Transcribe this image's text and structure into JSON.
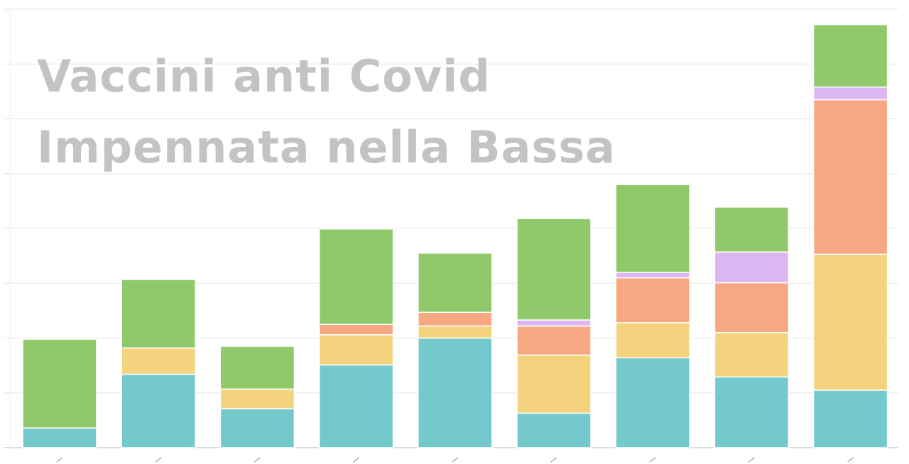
{
  "chart_data": {
    "type": "bar",
    "stacked": true,
    "title": "Vaccini anti Covid",
    "subtitle": "Impennata nella Bassa",
    "xlabel": "",
    "ylabel": "",
    "categories": [
      "",
      "",
      "",
      "",
      "",
      "",
      "",
      "",
      ""
    ],
    "ylim": [
      0,
      8
    ],
    "grid": true,
    "series": [
      {
        "color": "#74c9cd",
        "values": [
          0.36,
          1.34,
          0.71,
          1.51,
          2.0,
          0.63,
          1.64,
          1.29,
          1.05
        ]
      },
      {
        "color": "#f5d37e",
        "values": [
          0.0,
          0.48,
          0.36,
          0.55,
          0.22,
          1.06,
          0.64,
          0.81,
          2.48
        ]
      },
      {
        "color": "#f7a782",
        "values": [
          0.0,
          0.0,
          0.0,
          0.19,
          0.25,
          0.53,
          0.82,
          0.91,
          2.82
        ]
      },
      {
        "color": "#dcb6f0",
        "values": [
          0.0,
          0.0,
          0.0,
          0.0,
          0.0,
          0.11,
          0.1,
          0.56,
          0.23
        ]
      },
      {
        "color": "#8fc96a",
        "values": [
          1.62,
          1.25,
          0.78,
          1.74,
          1.08,
          1.85,
          1.6,
          0.82,
          1.14
        ]
      }
    ]
  }
}
